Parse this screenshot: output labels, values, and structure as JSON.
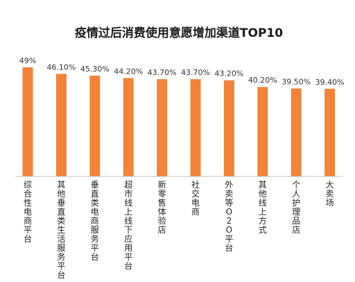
{
  "chart_data": {
    "type": "bar",
    "title": "疫情过后消费使用意愿增加渠道TOP10",
    "xlabel": "",
    "ylabel": "",
    "categories": [
      "综合性电商平台",
      "其他垂直类生活服务平台",
      "垂直类电商服务平台",
      "超市线上线下应用平台",
      "新零售体验店",
      "社交电商",
      "外卖等O2O平台",
      "其他线上方式",
      "个人护理品店",
      "大卖场"
    ],
    "values": [
      49,
      46.1,
      45.3,
      44.2,
      43.7,
      43.7,
      43.2,
      40.2,
      39.5,
      39.4
    ],
    "data_labels": [
      "49%",
      "46.10%",
      "45.30%",
      "44.20%",
      "43.70%",
      "43.70%",
      "43.20%",
      "40.20%",
      "39.50%",
      "39.40%"
    ],
    "ylim": [
      0,
      49
    ],
    "grid": false,
    "colors": {
      "bar": "#F0843A",
      "axis": "#bfbfbf"
    }
  }
}
